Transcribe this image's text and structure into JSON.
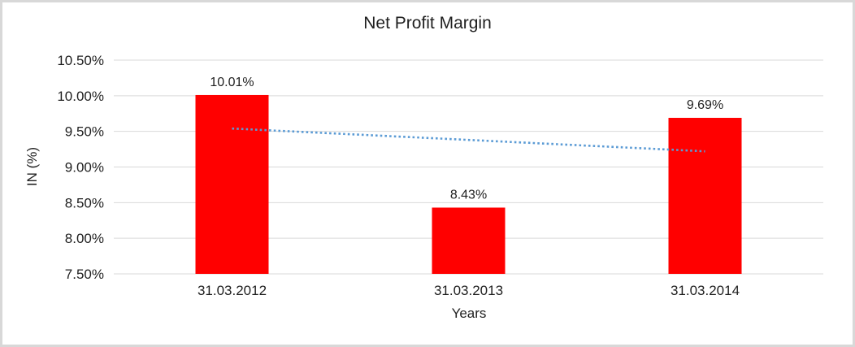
{
  "chart_data": {
    "type": "bar",
    "title": "Net Profit Margin",
    "categories": [
      "31.03.2012",
      "31.03.2013",
      "31.03.2014"
    ],
    "values": [
      10.01,
      8.43,
      9.69
    ],
    "data_labels": [
      "10.01%",
      "8.43%",
      "9.69%"
    ],
    "xlabel": "Years",
    "ylabel": "IN (%)",
    "ylim": [
      7.5,
      10.5
    ],
    "ytick_step": 0.5,
    "ytick_labels": [
      "7.50%",
      "8.00%",
      "8.50%",
      "9.00%",
      "9.50%",
      "10.00%",
      "10.50%"
    ],
    "grid": true,
    "legend": "none",
    "bar_color": "#ff0000",
    "gridline_color": "#d9d9d9",
    "frame_color": "#d8d8d8",
    "text_color": "#1f1f1f",
    "trendline": {
      "type": "linear",
      "style": "dotted",
      "color": "#5b9bd5",
      "start_value": 9.54,
      "end_value": 9.22
    }
  }
}
